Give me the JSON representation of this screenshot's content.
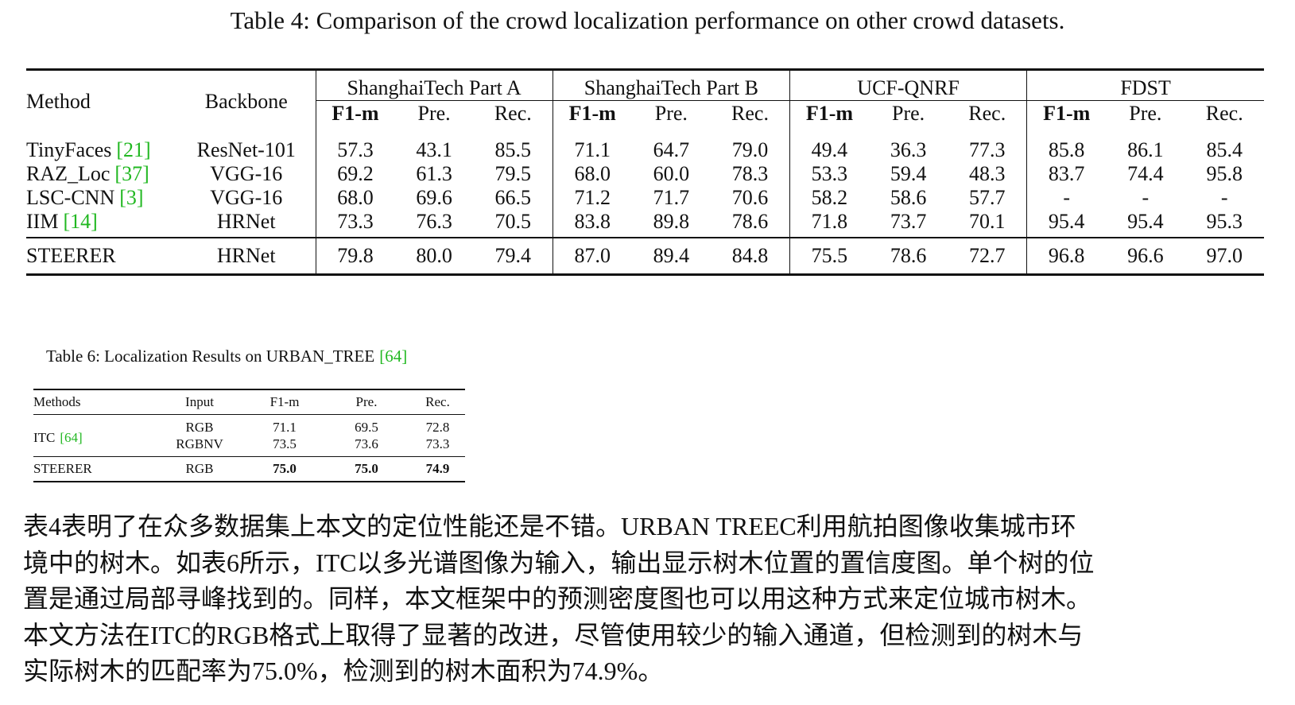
{
  "table4": {
    "caption": "Table 4: Comparison of the crowd localization performance on other crowd datasets.",
    "headers": {
      "method": "Method",
      "backbone": "Backbone"
    },
    "groups": [
      {
        "name": "ShanghaiTech Part A",
        "columns": [
          "F1-m",
          "Pre.",
          "Rec."
        ]
      },
      {
        "name": "ShanghaiTech Part B",
        "columns": [
          "F1-m",
          "Pre.",
          "Rec."
        ]
      },
      {
        "name": "UCF-QNRF",
        "columns": [
          "F1-m",
          "Pre.",
          "Rec."
        ]
      },
      {
        "name": "FDST",
        "columns": [
          "F1-m",
          "Pre.",
          "Rec."
        ]
      }
    ],
    "rows": [
      {
        "method": "TinyFaces",
        "cite": "[21]",
        "backbone": "ResNet-101",
        "values": [
          "57.3",
          "43.1",
          "85.5",
          "71.1",
          "64.7",
          "79.0",
          "49.4",
          "36.3",
          "77.3",
          "85.8",
          "86.1",
          "85.4"
        ],
        "bold": [
          2,
          8
        ]
      },
      {
        "method": "RAZ_Loc",
        "cite": "[37]",
        "backbone": "VGG-16",
        "values": [
          "69.2",
          "61.3",
          "79.5",
          "68.0",
          "60.0",
          "78.3",
          "53.3",
          "59.4",
          "48.3",
          "83.7",
          "74.4",
          "95.8"
        ],
        "bold": []
      },
      {
        "method": "LSC-CNN",
        "cite": "[3]",
        "backbone": "VGG-16",
        "values": [
          "68.0",
          "69.6",
          "66.5",
          "71.2",
          "71.7",
          "70.6",
          "58.2",
          "58.6",
          "57.7",
          "-",
          "-",
          "-"
        ],
        "bold": []
      },
      {
        "method": "IIM",
        "cite": "[14]",
        "backbone": "HRNet",
        "values": [
          "73.3",
          "76.3",
          "70.5",
          "83.8",
          "89.8",
          "78.6",
          "71.8",
          "73.7",
          "70.1",
          "95.4",
          "95.4",
          "95.3"
        ],
        "bold": [
          4
        ]
      }
    ],
    "ours": {
      "method": "STEERER",
      "backbone": "HRNet",
      "values": [
        "79.8",
        "80.0",
        "79.4",
        "87.0",
        "89.4",
        "84.8",
        "75.5",
        "78.6",
        "72.7",
        "96.8",
        "96.6",
        "97.0"
      ],
      "bold": [
        0,
        1,
        3,
        5,
        6,
        7,
        9,
        10,
        11
      ]
    }
  },
  "table6": {
    "caption": {
      "text": "Table 6: Localization Results on URBAN_TREE",
      "cite": "[64]"
    },
    "headers": [
      "Methods",
      "Input",
      "F1-m",
      "Pre.",
      "Rec."
    ],
    "rows": [
      {
        "method": "ITC",
        "cite": "[64]",
        "cells": [
          "RGB",
          "71.1",
          "69.5",
          "72.8"
        ],
        "bold": []
      },
      {
        "cells": [
          "RGBNV",
          "73.5",
          "73.6",
          "73.3"
        ],
        "bold": []
      },
      {
        "method": "STEERER",
        "cells": [
          "RGB",
          "75.0",
          "75.0",
          "74.9"
        ],
        "bold": [
          1,
          2,
          3
        ]
      }
    ]
  },
  "paragraph": [
    "表4表明了在众多数据集上本文的定位性能还是不错。URBAN TREEC利用航拍图像收集城市环",
    "境中的树木。如表6所示，ITC以多光谱图像为输入，输出显示树木位置的置信度图。单个树的位",
    "置是通过局部寻峰找到的。同样，本文框架中的预测密度图也可以用这种方式来定位城市树木。",
    "本文方法在ITC的RGB格式上取得了显著的改进，尽管使用较少的输入通道，但检测到的树木与",
    "实际树木的匹配率为75.0%，检测到的树木面积为74.9%。"
  ]
}
